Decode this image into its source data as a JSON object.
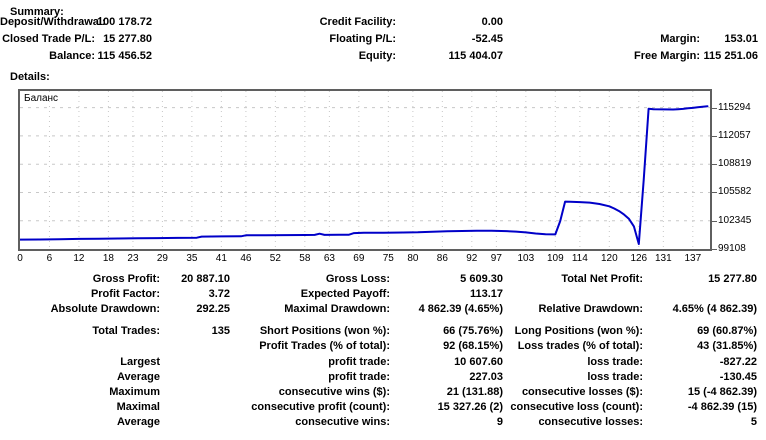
{
  "summary": {
    "title": "Summary:",
    "rows": [
      [
        "Deposit/Withdrawal:",
        "100 178.72",
        "Credit Facility:",
        "0.00",
        "",
        ""
      ],
      [
        "Closed Trade P/L:",
        "15 277.80",
        "Floating P/L:",
        "-52.45",
        "Margin:",
        "153.01"
      ],
      [
        "Balance:",
        "115 456.52",
        "Equity:",
        "115 404.07",
        "Free Margin:",
        "115 251.06"
      ]
    ]
  },
  "details": {
    "title": "Details:",
    "rows": [
      [
        "Gross Profit:",
        "20 887.10",
        "Gross Loss:",
        "5 609.30",
        "Total Net Profit:",
        "15 277.80"
      ],
      [
        "Profit Factor:",
        "3.72",
        "Expected Payoff:",
        "113.17",
        "",
        ""
      ],
      [
        "Absolute Drawdown:",
        "292.25",
        "Maximal Drawdown:",
        "4 862.39 (4.65%)",
        "Relative Drawdown:",
        "4.65% (4 862.39)"
      ],
      [
        "Total Trades:",
        "135",
        "Short Positions (won %):",
        "66 (75.76%)",
        "Long Positions (won %):",
        "69 (60.87%)"
      ],
      [
        "",
        "",
        "Profit Trades (% of total):",
        "92 (68.15%)",
        "Loss trades (% of total):",
        "43 (31.85%)"
      ],
      [
        "Largest",
        "",
        "profit trade:",
        "10 607.60",
        "loss trade:",
        "-827.22"
      ],
      [
        "Average",
        "",
        "profit trade:",
        "227.03",
        "loss trade:",
        "-130.45"
      ],
      [
        "Maximum",
        "",
        "consecutive wins ($):",
        "21 (131.88)",
        "consecutive losses ($):",
        "15 (-4 862.39)"
      ],
      [
        "Maximal",
        "",
        "consecutive profit (count):",
        "15 327.26 (2)",
        "consecutive loss (count):",
        "-4 862.39 (15)"
      ],
      [
        "Average",
        "",
        "consecutive wins:",
        "9",
        "consecutive losses:",
        "5"
      ]
    ]
  },
  "chart_data": {
    "type": "line",
    "title": "Баланс",
    "xlabel": "",
    "ylabel": "",
    "x_ticks": [
      0,
      6,
      12,
      18,
      23,
      29,
      35,
      41,
      46,
      52,
      58,
      63,
      69,
      75,
      80,
      86,
      92,
      97,
      103,
      109,
      114,
      120,
      126,
      131,
      137
    ],
    "y_ticks": [
      99108,
      102345,
      105582,
      108819,
      112057,
      115294
    ],
    "xlim": [
      0,
      140.5
    ],
    "ylim": [
      99108,
      117200
    ],
    "grid": "dashed",
    "legend_position": "none",
    "line_color": "#0000C8",
    "grid_color": "#C8C8C8",
    "frame_color": "#5F5F5F",
    "series": [
      {
        "name": "Баланс",
        "points": [
          [
            0,
            100179
          ],
          [
            4,
            100200
          ],
          [
            8,
            100235
          ],
          [
            12,
            100260
          ],
          [
            16,
            100290
          ],
          [
            20,
            100315
          ],
          [
            24,
            100335
          ],
          [
            28,
            100360
          ],
          [
            32,
            100380
          ],
          [
            36,
            100400
          ],
          [
            37,
            100530
          ],
          [
            41,
            100550
          ],
          [
            45,
            100565
          ],
          [
            46,
            100680
          ],
          [
            50,
            100690
          ],
          [
            54,
            100700
          ],
          [
            58,
            100712
          ],
          [
            60,
            100718
          ],
          [
            61,
            100860
          ],
          [
            62,
            100722
          ],
          [
            65,
            100730
          ],
          [
            67,
            100745
          ],
          [
            68,
            100930
          ],
          [
            70,
            100960
          ],
          [
            74,
            100978
          ],
          [
            78,
            100995
          ],
          [
            81,
            101015
          ],
          [
            84,
            101090
          ],
          [
            87,
            101135
          ],
          [
            90,
            101170
          ],
          [
            93,
            101190
          ],
          [
            96,
            101195
          ],
          [
            99,
            101160
          ],
          [
            101,
            101100
          ],
          [
            103,
            101010
          ],
          [
            105,
            100880
          ],
          [
            107,
            100790
          ],
          [
            109,
            100775
          ],
          [
            110,
            102300
          ],
          [
            111,
            104540
          ],
          [
            112,
            104520
          ],
          [
            114,
            104480
          ],
          [
            116,
            104420
          ],
          [
            118,
            104260
          ],
          [
            120,
            104000
          ],
          [
            121,
            103750
          ],
          [
            122,
            103450
          ],
          [
            123,
            103050
          ],
          [
            124,
            102550
          ],
          [
            125,
            101700
          ],
          [
            126,
            99680
          ],
          [
            127,
            107000
          ],
          [
            128,
            115160
          ],
          [
            129,
            115120
          ],
          [
            131,
            115090
          ],
          [
            133,
            115080
          ],
          [
            134,
            115120
          ],
          [
            135,
            115145
          ],
          [
            136,
            115230
          ],
          [
            137,
            115265
          ],
          [
            138,
            115340
          ],
          [
            140,
            115460
          ]
        ]
      }
    ]
  }
}
